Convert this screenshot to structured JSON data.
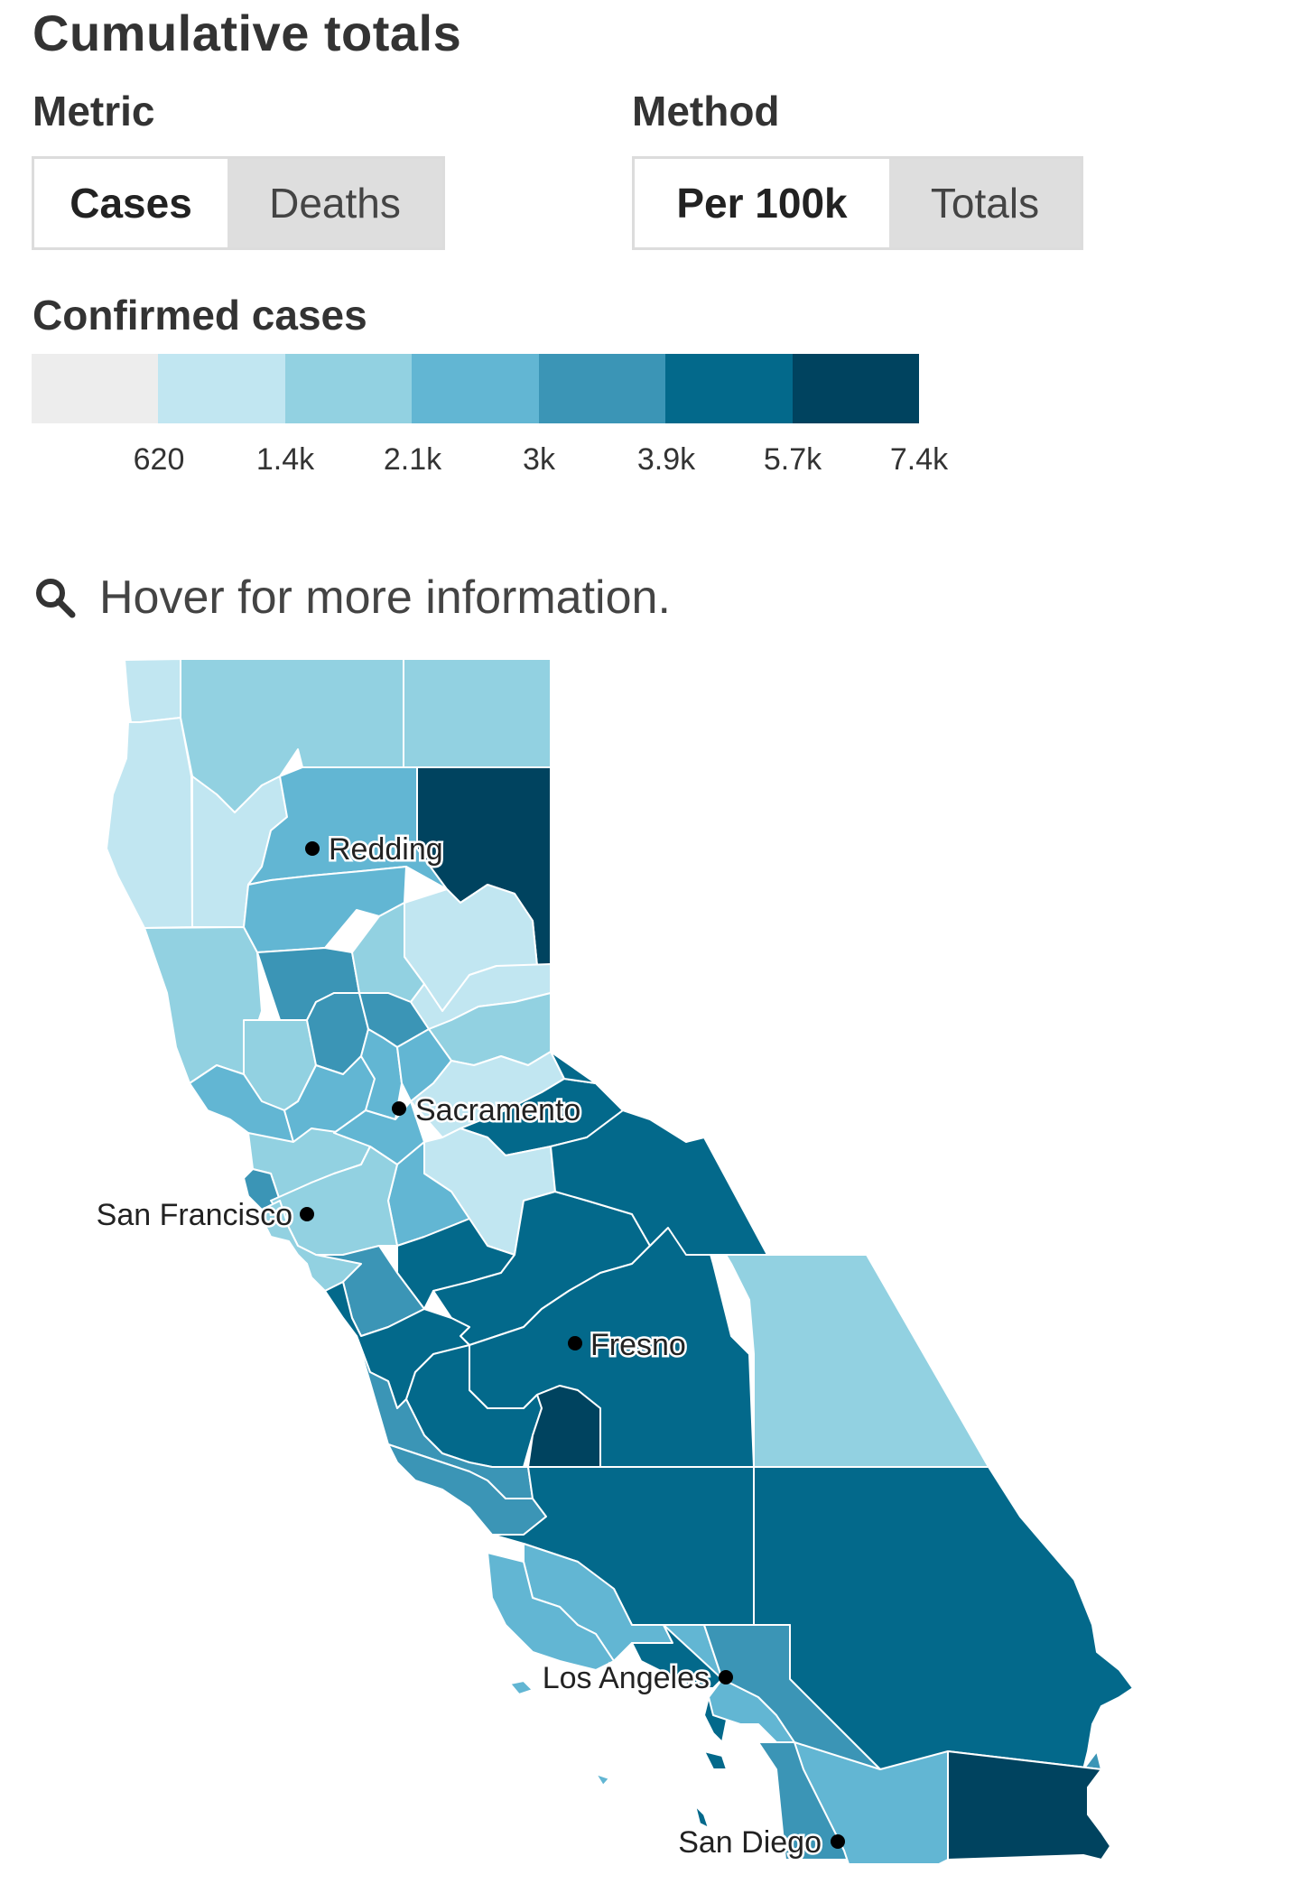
{
  "header": {
    "title": "Cumulative totals"
  },
  "metric": {
    "label": "Metric",
    "options": [
      "Cases",
      "Deaths"
    ],
    "selected": "Cases"
  },
  "method": {
    "label": "Method",
    "options": [
      "Per 100k",
      "Totals"
    ],
    "selected": "Per 100k"
  },
  "legend": {
    "title": "Confirmed cases",
    "colors": [
      "#ededed",
      "#c1e6f1",
      "#92d1e1",
      "#62b6d3",
      "#3b95b6",
      "#03698b",
      "#00435f"
    ],
    "ticks": [
      "620",
      "1.4k",
      "2.1k",
      "3k",
      "3.9k",
      "5.7k",
      "7.4k"
    ]
  },
  "hint": {
    "text": "Hover for more information.",
    "icon": "search-icon"
  },
  "map": {
    "cities": [
      "Redding",
      "Sacramento",
      "San Francisco",
      "Fresno",
      "Los Angeles",
      "San Diego"
    ]
  }
}
